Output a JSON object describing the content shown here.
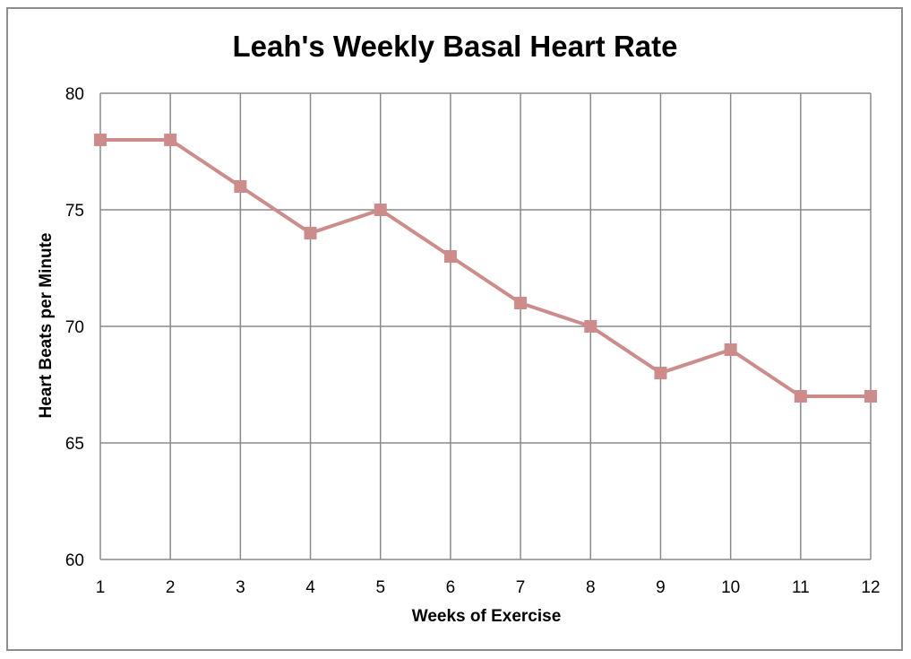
{
  "chart_data": {
    "type": "line",
    "title": "Leah's Weekly Basal Heart Rate",
    "xlabel": "Weeks of Exercise",
    "ylabel": "Heart Beats per Minute",
    "x": [
      1,
      2,
      3,
      4,
      5,
      6,
      7,
      8,
      9,
      10,
      11,
      12
    ],
    "x_tick_labels": [
      "1",
      "2",
      "3",
      "4",
      "5",
      "6",
      "7",
      "8",
      "9",
      "10",
      "11",
      "12"
    ],
    "y_ticks": [
      60,
      65,
      70,
      75,
      80
    ],
    "y_tick_labels": [
      "60",
      "65",
      "70",
      "75",
      "80"
    ],
    "ylim": [
      60,
      80
    ],
    "xlim": [
      1,
      12
    ],
    "grid": true,
    "series": [
      {
        "values": [
          78,
          78,
          76,
          74,
          75,
          73,
          71,
          70,
          68,
          69,
          67,
          67
        ],
        "color": "#cc8c8c",
        "marker": "square"
      }
    ]
  }
}
